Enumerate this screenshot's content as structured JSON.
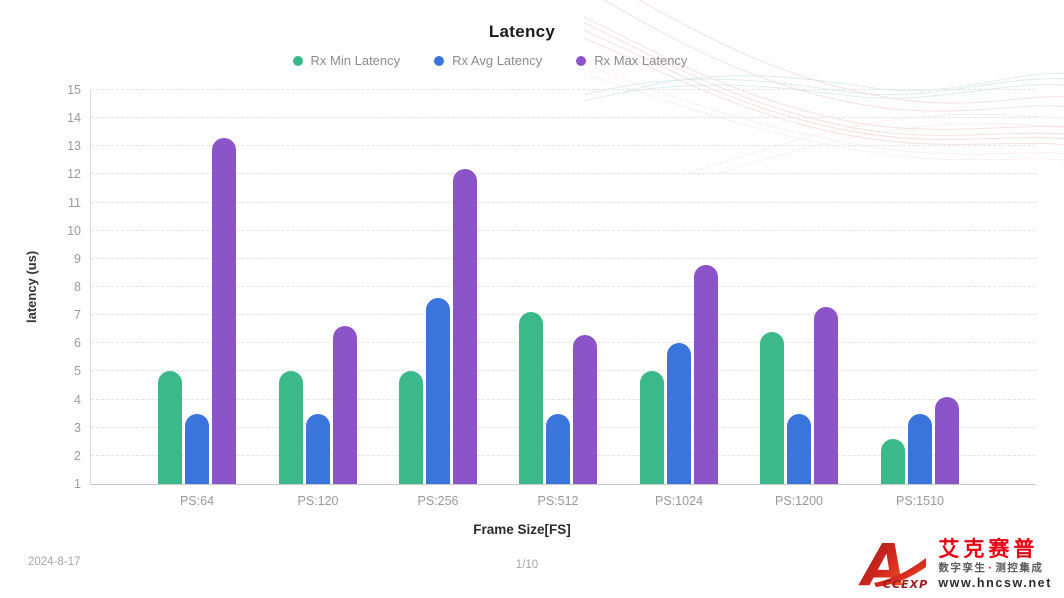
{
  "page": {
    "date": "2024-8-17",
    "page_indicator": "1/10"
  },
  "brand": {
    "logo_letters": "CCEXP",
    "name_cn": "艾克赛普",
    "tagline_left": "数字孪生",
    "tagline_sep": "·",
    "tagline_right": "测控集成",
    "website": "www.hncsw.net"
  },
  "chart_data": {
    "type": "bar",
    "title": "Latency",
    "xlabel": "Frame Size[FS]",
    "ylabel": "latency (us)",
    "categories": [
      "PS:64",
      "PS:120",
      "PS:256",
      "PS:512",
      "PS:1024",
      "PS:1200",
      "PS:1510"
    ],
    "series": [
      {
        "name": "Rx Min Latency",
        "color": "#3bb98a",
        "values": [
          5.0,
          5.0,
          5.0,
          7.1,
          5.0,
          6.4,
          2.6
        ]
      },
      {
        "name": "Rx Avg Latency",
        "color": "#3a75dc",
        "values": [
          3.5,
          3.5,
          7.6,
          3.5,
          6.0,
          3.5,
          3.5
        ]
      },
      {
        "name": "Rx Max Latency",
        "color": "#8b55c9",
        "values": [
          13.3,
          6.6,
          12.2,
          6.3,
          8.8,
          7.3,
          4.1
        ]
      }
    ],
    "ylim": [
      1,
      15
    ],
    "yticks": [
      1,
      2,
      3,
      4,
      5,
      6,
      7,
      8,
      9,
      10,
      11,
      12,
      13,
      14,
      15
    ],
    "grid": "horizontal-dashed",
    "legend_position": "top-center",
    "bar_baseline": 1
  }
}
